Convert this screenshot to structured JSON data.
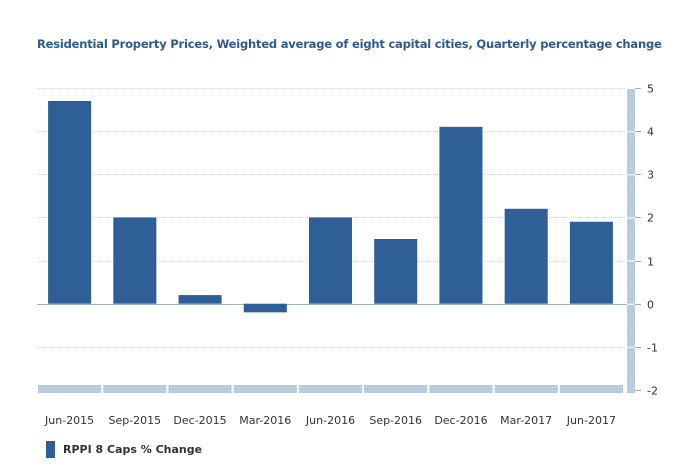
{
  "chart_data": {
    "type": "bar",
    "title": "Residential Property Prices, Weighted average of eight capital cities, Quarterly percentage change",
    "xlabel": "",
    "ylabel": "",
    "categories": [
      "Jun-2015",
      "Sep-2015",
      "Dec-2015",
      "Mar-2016",
      "Jun-2016",
      "Sep-2016",
      "Dec-2016",
      "Mar-2017",
      "Jun-2017"
    ],
    "series": [
      {
        "name": "RPPI 8 Caps % Change",
        "values": [
          4.7,
          2.0,
          0.2,
          -0.2,
          2.0,
          1.5,
          4.1,
          2.2,
          1.9
        ],
        "color": "#2e5f96"
      }
    ],
    "ylim": [
      -2,
      5
    ],
    "yticks": [
      5,
      4,
      3,
      2,
      1,
      0,
      -1,
      -2
    ],
    "y_axis_side": "right",
    "grid": true,
    "legend": "bottom-left"
  }
}
